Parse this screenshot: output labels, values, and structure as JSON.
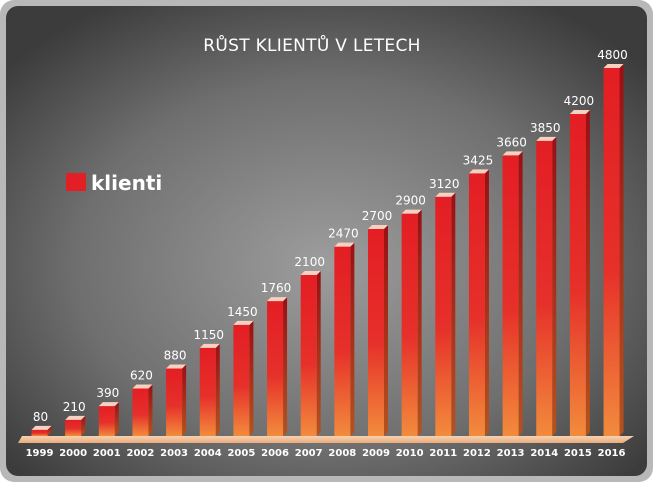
{
  "chart_data": {
    "type": "bar",
    "title": "RŮST KLIENTŮ V LETECH",
    "legend": [
      {
        "name": "klienti",
        "color": "#e31e24"
      }
    ],
    "legend_position": "left",
    "categories": [
      "1999",
      "2000",
      "2001",
      "2002",
      "2003",
      "2004",
      "2005",
      "2006",
      "2007",
      "2008",
      "2009",
      "2010",
      "2011",
      "2012",
      "2013",
      "2014",
      "2015",
      "2016"
    ],
    "series": [
      {
        "name": "klienti",
        "values": [
          80,
          210,
          390,
          620,
          880,
          1150,
          1450,
          1760,
          2100,
          2470,
          2700,
          2900,
          3120,
          3425,
          3660,
          3850,
          4200,
          4800
        ]
      }
    ],
    "data_labels": [
      "80",
      "210",
      "390",
      "620",
      "880",
      "1150",
      "1450",
      "1760",
      "2100",
      "2470",
      "2700",
      "2900",
      "3120",
      "3425",
      "3660",
      "3850",
      "4200",
      "4800"
    ],
    "ylim": [
      0,
      4800
    ],
    "grid": false
  },
  "colors": {
    "background_outer": "#a9a9a9",
    "background_inner": "#3a3a3a",
    "bar_top": "#e31e24",
    "bar_bottom": "#f28b3c",
    "floor": "#f3c6a0"
  }
}
